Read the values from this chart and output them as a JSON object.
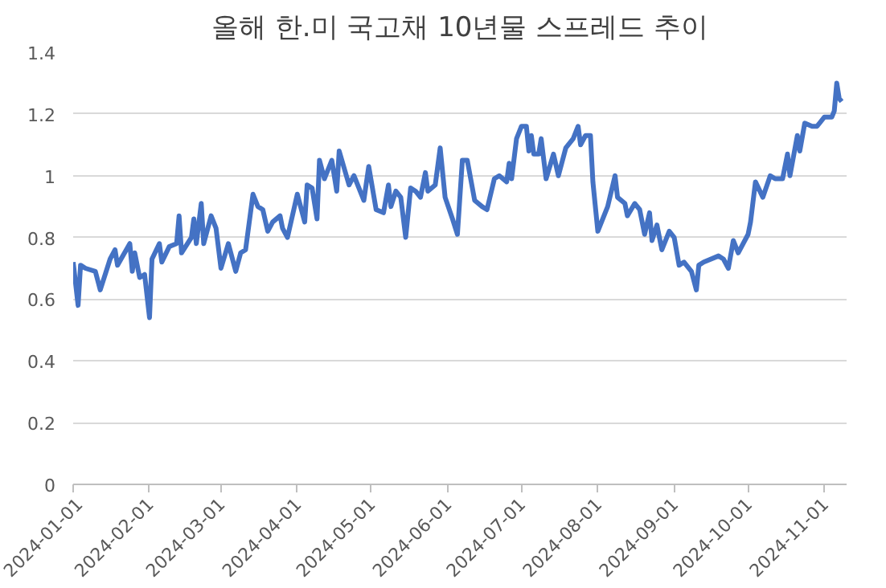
{
  "chart_data": {
    "type": "line",
    "title": "올해 한.미 국고채 10년물 스프레드 추이",
    "x": [
      "2024-01-01",
      "2024-01-03",
      "2024-01-04",
      "2024-01-06",
      "2024-01-10",
      "2024-01-12",
      "2024-01-16",
      "2024-01-18",
      "2024-01-19",
      "2024-01-24",
      "2024-01-25",
      "2024-01-26",
      "2024-01-28",
      "2024-01-30",
      "2024-02-01",
      "2024-02-02",
      "2024-02-05",
      "2024-02-06",
      "2024-02-09",
      "2024-02-12",
      "2024-02-13",
      "2024-02-14",
      "2024-02-18",
      "2024-02-19",
      "2024-02-20",
      "2024-02-22",
      "2024-02-23",
      "2024-02-26",
      "2024-02-28",
      "2024-03-01",
      "2024-03-04",
      "2024-03-07",
      "2024-03-09",
      "2024-03-11",
      "2024-03-14",
      "2024-03-16",
      "2024-03-18",
      "2024-03-20",
      "2024-03-22",
      "2024-03-25",
      "2024-03-26",
      "2024-03-28",
      "2024-04-01",
      "2024-04-04",
      "2024-04-05",
      "2024-04-07",
      "2024-04-09",
      "2024-04-10",
      "2024-04-12",
      "2024-04-15",
      "2024-04-17",
      "2024-04-18",
      "2024-04-22",
      "2024-04-24",
      "2024-04-28",
      "2024-04-30",
      "2024-05-03",
      "2024-05-06",
      "2024-05-08",
      "2024-05-09",
      "2024-05-11",
      "2024-05-13",
      "2024-05-15",
      "2024-05-17",
      "2024-05-19",
      "2024-05-21",
      "2024-05-23",
      "2024-05-24",
      "2024-05-27",
      "2024-05-29",
      "2024-05-31",
      "2024-06-03",
      "2024-06-05",
      "2024-06-07",
      "2024-06-09",
      "2024-06-12",
      "2024-06-15",
      "2024-06-17",
      "2024-06-20",
      "2024-06-22",
      "2024-06-25",
      "2024-06-26",
      "2024-06-27",
      "2024-06-29",
      "2024-07-01",
      "2024-07-03",
      "2024-07-04",
      "2024-07-05",
      "2024-07-06",
      "2024-07-08",
      "2024-07-09",
      "2024-07-11",
      "2024-07-14",
      "2024-07-16",
      "2024-07-19",
      "2024-07-22",
      "2024-07-24",
      "2024-07-25",
      "2024-07-27",
      "2024-07-29",
      "2024-07-30",
      "2024-08-01",
      "2024-08-05",
      "2024-08-08",
      "2024-08-09",
      "2024-08-12",
      "2024-08-13",
      "2024-08-16",
      "2024-08-18",
      "2024-08-20",
      "2024-08-22",
      "2024-08-23",
      "2024-08-25",
      "2024-08-27",
      "2024-08-30",
      "2024-09-01",
      "2024-09-03",
      "2024-09-05",
      "2024-09-08",
      "2024-09-10",
      "2024-09-11",
      "2024-09-13",
      "2024-09-19",
      "2024-09-21",
      "2024-09-23",
      "2024-09-25",
      "2024-09-27",
      "2024-10-01",
      "2024-10-02",
      "2024-10-04",
      "2024-10-07",
      "2024-10-10",
      "2024-10-12",
      "2024-10-15",
      "2024-10-17",
      "2024-10-18",
      "2024-10-21",
      "2024-10-22",
      "2024-10-24",
      "2024-10-27",
      "2024-10-29",
      "2024-11-01",
      "2024-11-04",
      "2024-11-05",
      "2024-11-06",
      "2024-11-07",
      "2024-11-08"
    ],
    "series": [
      {
        "color": "#4472c4",
        "values": [
          0.72,
          0.58,
          0.71,
          0.7,
          0.69,
          0.63,
          0.73,
          0.76,
          0.71,
          0.78,
          0.69,
          0.75,
          0.67,
          0.68,
          0.54,
          0.73,
          0.78,
          0.72,
          0.77,
          0.78,
          0.87,
          0.75,
          0.8,
          0.86,
          0.78,
          0.91,
          0.78,
          0.87,
          0.83,
          0.7,
          0.78,
          0.69,
          0.75,
          0.76,
          0.94,
          0.9,
          0.89,
          0.82,
          0.85,
          0.87,
          0.83,
          0.8,
          0.94,
          0.85,
          0.97,
          0.96,
          0.86,
          1.05,
          0.99,
          1.05,
          0.95,
          1.08,
          0.97,
          1.0,
          0.92,
          1.03,
          0.89,
          0.88,
          0.97,
          0.9,
          0.95,
          0.93,
          0.8,
          0.96,
          0.95,
          0.93,
          1.01,
          0.95,
          0.97,
          1.09,
          0.93,
          0.86,
          0.81,
          1.05,
          1.05,
          0.92,
          0.9,
          0.89,
          0.99,
          1.0,
          0.98,
          1.04,
          0.99,
          1.12,
          1.16,
          1.16,
          1.08,
          1.13,
          1.07,
          1.07,
          1.12,
          0.99,
          1.07,
          1.0,
          1.09,
          1.12,
          1.16,
          1.1,
          1.13,
          1.13,
          0.98,
          0.82,
          0.9,
          1.0,
          0.93,
          0.91,
          0.87,
          0.91,
          0.89,
          0.81,
          0.88,
          0.79,
          0.84,
          0.76,
          0.82,
          0.8,
          0.71,
          0.72,
          0.69,
          0.63,
          0.71,
          0.72,
          0.74,
          0.73,
          0.7,
          0.79,
          0.75,
          0.81,
          0.85,
          0.98,
          0.93,
          1.0,
          0.99,
          0.99,
          1.07,
          1.0,
          1.13,
          1.08,
          1.17,
          1.16,
          1.16,
          1.19,
          1.19,
          1.21,
          1.3,
          1.25,
          1.24
        ]
      }
    ],
    "xlim": [
      "2024-01-01",
      "2024-11-10"
    ],
    "xticks": [
      "2024-01-01",
      "2024-02-01",
      "2024-03-01",
      "2024-04-01",
      "2024-05-01",
      "2024-06-01",
      "2024-07-01",
      "2024-08-01",
      "2024-09-01",
      "2024-10-01",
      "2024-11-01"
    ],
    "ylim": [
      0,
      1.4
    ],
    "yticks": [
      0,
      0.2,
      0.4,
      0.6,
      0.8,
      1,
      1.2,
      1.4
    ],
    "grid": "y",
    "marker": "none",
    "line_style": "solid"
  }
}
